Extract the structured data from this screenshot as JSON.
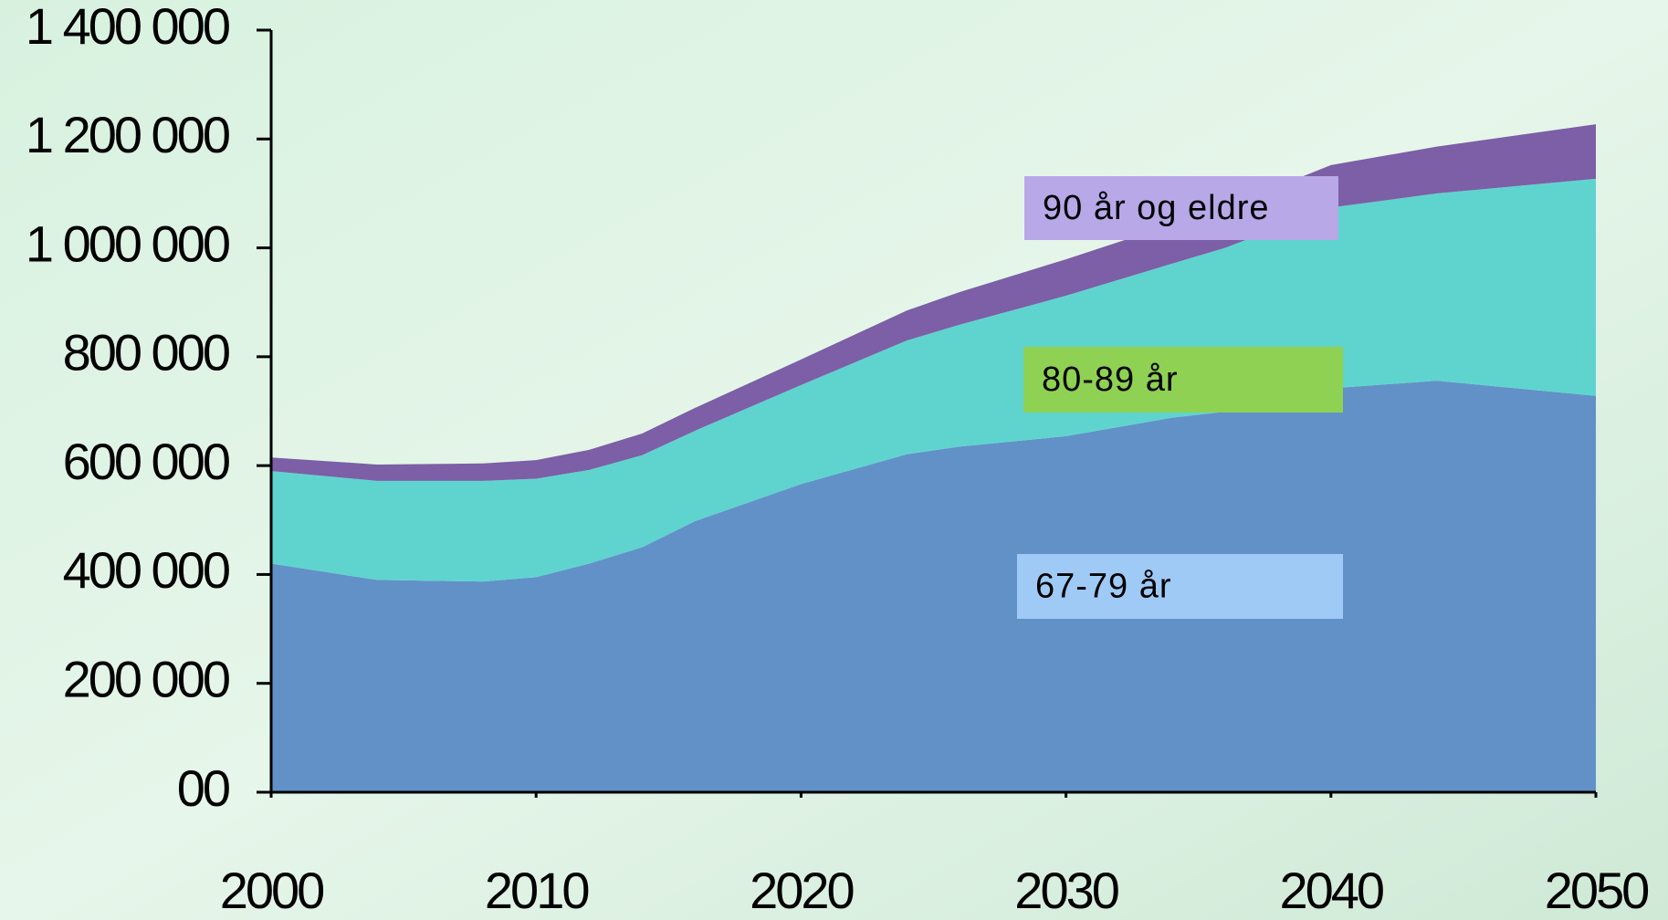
{
  "chart_data": {
    "type": "stacked-area",
    "x": [
      2000,
      2004,
      2008,
      2010,
      2012,
      2014,
      2016,
      2020,
      2024,
      2026,
      2030,
      2034,
      2036,
      2040,
      2044,
      2050
    ],
    "series": [
      {
        "name": "67-79 år",
        "color": "#6291c8",
        "values": [
          420000,
          390000,
          387000,
          395000,
          420000,
          450000,
          498000,
          566000,
          621000,
          635000,
          654000,
          688000,
          699000,
          742000,
          756000,
          728000
        ]
      },
      {
        "name": "80-89 år",
        "color": "#5fd4cf",
        "values": [
          170000,
          182000,
          185000,
          181000,
          172000,
          169000,
          166000,
          182000,
          209000,
          224000,
          258000,
          283000,
          301000,
          332000,
          344000,
          399000
        ]
      },
      {
        "name": "90 år og eldre",
        "color": "#7c5fa6",
        "values": [
          25000,
          30000,
          32000,
          34000,
          37000,
          40000,
          42000,
          47000,
          55000,
          60000,
          67000,
          72000,
          74000,
          78000,
          86000,
          100000
        ]
      }
    ],
    "xlim": [
      2000,
      2050
    ],
    "xticks": [
      2000,
      2010,
      2020,
      2030,
      2040,
      2050
    ],
    "ylim": [
      0,
      1400000
    ],
    "yticks": [
      {
        "value": 0,
        "label": "00"
      },
      {
        "value": 200000,
        "label": "200 000"
      },
      {
        "value": 400000,
        "label": "400 000"
      },
      {
        "value": 600000,
        "label": "600 000"
      },
      {
        "value": 800000,
        "label": "800 000"
      },
      {
        "value": 1000000,
        "label": "1 000 000"
      },
      {
        "value": 1200000,
        "label": "1 200 000"
      },
      {
        "value": 1400000,
        "label": "1 400 000"
      }
    ]
  }
}
